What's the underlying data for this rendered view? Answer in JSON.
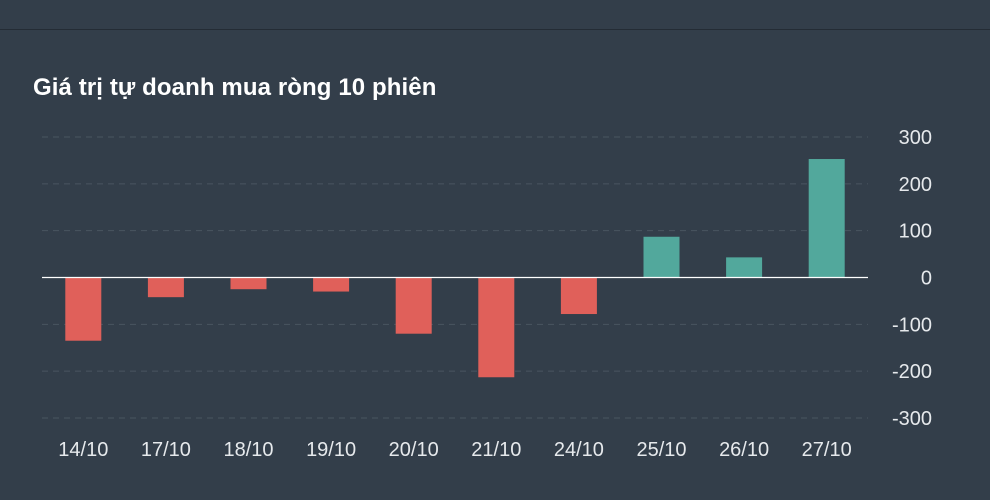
{
  "chart_data": {
    "type": "bar",
    "title": "Giá trị tự doanh mua ròng 10 phiên",
    "categories": [
      "14/10",
      "17/10",
      "18/10",
      "19/10",
      "20/10",
      "21/10",
      "24/10",
      "25/10",
      "26/10",
      "27/10"
    ],
    "values": [
      -135,
      -42,
      -25,
      -30,
      -120,
      -213,
      -78,
      87,
      43,
      253
    ],
    "ylim": [
      -300,
      300
    ],
    "yticks": [
      300,
      200,
      100,
      0,
      -100,
      -200,
      -300
    ],
    "ytick_labels": [
      "300",
      "200",
      "100",
      "0",
      "-100",
      "-200",
      "-300"
    ],
    "y_axis_position": "right",
    "grid": true,
    "colors": {
      "positive": "#52a89c",
      "negative": "#e0605a",
      "grid": "#4a5560",
      "zero_line": "#ffffff",
      "background": "#333e4a"
    }
  }
}
